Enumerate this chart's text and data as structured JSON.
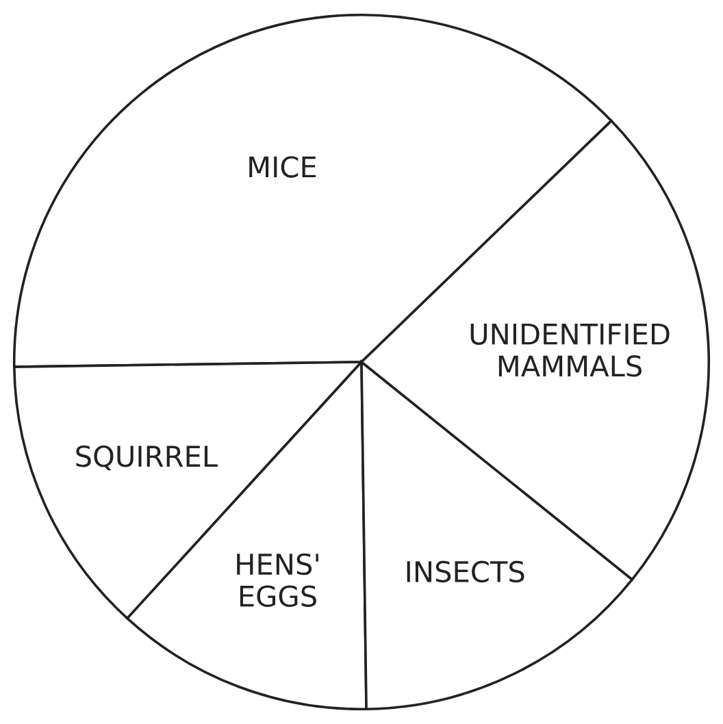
{
  "chart_data": {
    "type": "pie",
    "categories": [
      "MICE",
      "SQUIRREL",
      "HENS'\nEGGS",
      "INSECTS",
      "UNIDENTIFIED\nMAMMALS"
    ],
    "values": [
      38,
      13,
      12,
      14,
      23
    ],
    "colors": [
      "#ffffff",
      "#ffffff",
      "#ffffff",
      "#ffffff",
      "#ffffff"
    ]
  }
}
